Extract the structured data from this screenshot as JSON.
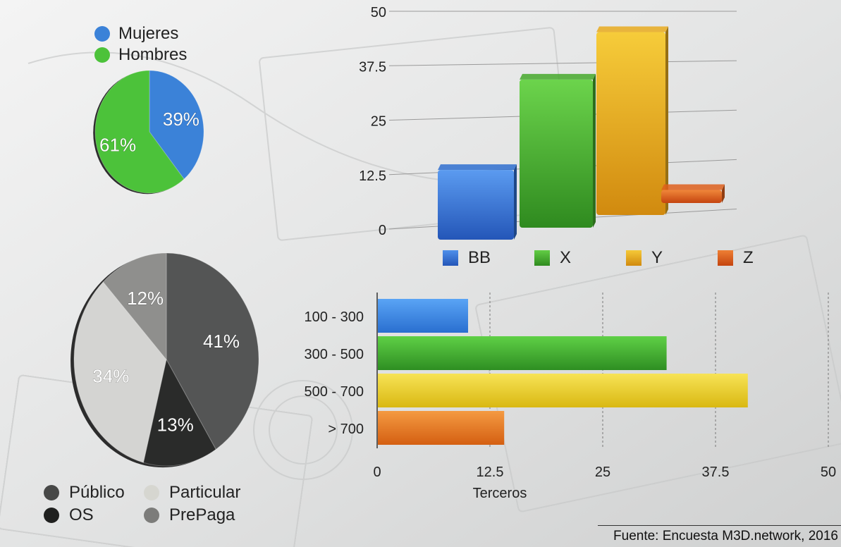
{
  "source": "Fuente: Encuesta M3D.network, 2016",
  "chart_data": [
    {
      "type": "pie",
      "labels": [
        "Mujeres",
        "Hombres"
      ],
      "values": [
        39,
        61
      ],
      "value_labels": [
        "39%",
        "61%"
      ],
      "colors": [
        "#3b82d8",
        "#4cc23a"
      ],
      "legend_placement": "top-left"
    },
    {
      "type": "pie",
      "labels": [
        "Público",
        "OS",
        "Particular",
        "PrePaga"
      ],
      "values": [
        41,
        13,
        34,
        12
      ],
      "value_labels": [
        "41%",
        "13%",
        "34%",
        "12%"
      ],
      "colors": [
        "#545555",
        "#2a2b2a",
        "#d4d4d2",
        "#8f8f8d"
      ],
      "legend_placement": "bottom"
    },
    {
      "type": "bar",
      "categories": [
        "BB",
        "X",
        "Y",
        "Z"
      ],
      "values": [
        16,
        34,
        42,
        3
      ],
      "colors": [
        "#2f6fcf",
        "#45a82c",
        "#e7aa1e",
        "#de5f1c"
      ],
      "ylim": [
        0,
        50
      ],
      "yticks": [
        "0",
        "12.5",
        "25",
        "37.5",
        "50"
      ],
      "grid": true,
      "legend_placement": "bottom"
    },
    {
      "type": "bar",
      "orientation": "horizontal",
      "categories": [
        "100 - 300",
        "300 - 500",
        "500 - 700",
        "> 700"
      ],
      "values": [
        10,
        32,
        41,
        14
      ],
      "colors": [
        "#3d8ae6",
        "#41ad35",
        "#ead122",
        "#e8791e"
      ],
      "xlim": [
        0,
        50
      ],
      "xticks": [
        "0",
        "12.5",
        "25",
        "37.5",
        "50"
      ],
      "xlabel": "Terceros",
      "grid": true
    }
  ]
}
